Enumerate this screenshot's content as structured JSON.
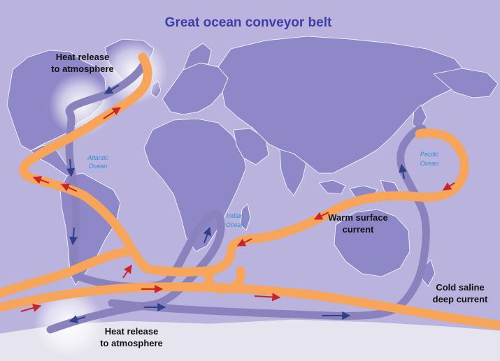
{
  "title": "Great ocean conveyor belt",
  "labels": {
    "heat_release_top_1": "Heat release",
    "heat_release_top_2": "to atmosphere",
    "heat_release_bottom_1": "Heat release",
    "heat_release_bottom_2": "to atmosphere",
    "warm_current_1": "Warm surface",
    "warm_current_2": "current",
    "cold_current_1": "Cold saline",
    "cold_current_2": "deep current"
  },
  "oceans": {
    "atlantic_1": "Atlantic",
    "atlantic_2": "Ocean",
    "indian_1": "Indian",
    "indian_2": "Ocean",
    "pacific_1": "Pacific",
    "pacific_2": "Ocean"
  },
  "colors": {
    "background": "#b9b3dd",
    "land": "#8f88c8",
    "land_border": "#ffffff",
    "warm_current": "#f6a55b",
    "cold_current": "#8982bc",
    "arrow_warm": "#c8242a",
    "arrow_cold": "#2f3f8a",
    "title": "#3d3fa6",
    "ocean_label": "#2f8fd0",
    "antarctica": "#e6e4ee"
  }
}
